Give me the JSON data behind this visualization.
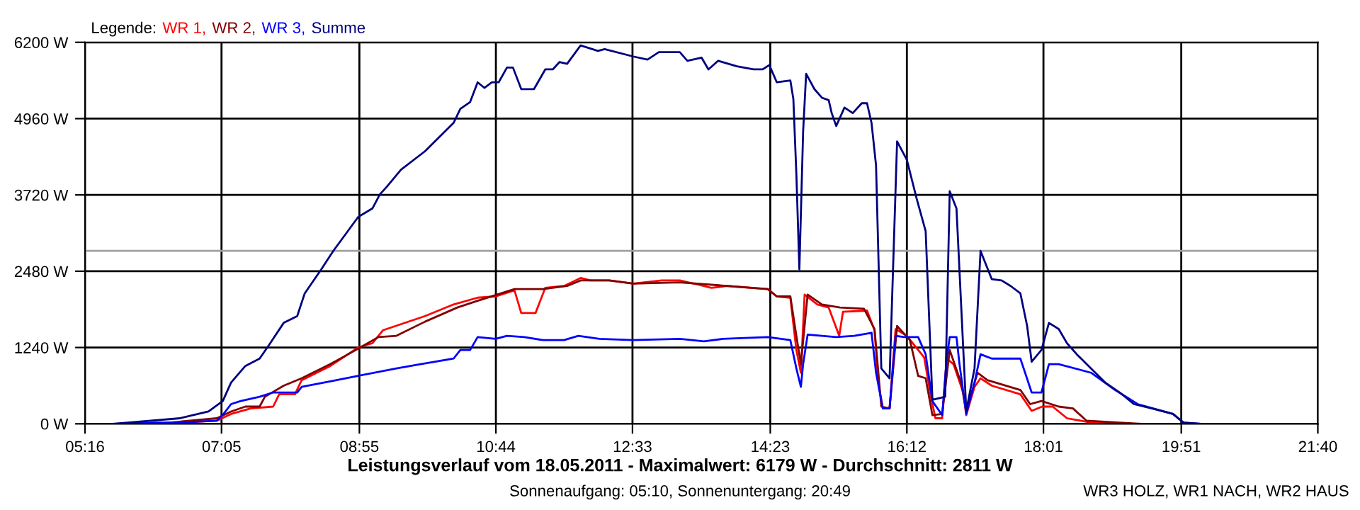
{
  "chart_data": {
    "type": "line",
    "title": "Leistungsverlauf vom 18.05.2011 - Maximalwert: 6179 W - Durchschnitt: 2811 W",
    "subtitle": "Sonnenaufgang: 05:10, Sonnenuntergang: 20:49",
    "legend_title": "Legende:",
    "annotations": [
      "WR3 HOLZ, WR1 NACH, WR2 HAUS"
    ],
    "xlim": [
      5.267,
      21.667
    ],
    "ylim": [
      0,
      6200
    ],
    "xticks": [
      {
        "value": 5.267,
        "label": "05:16"
      },
      {
        "value": 7.083,
        "label": "07:05"
      },
      {
        "value": 8.917,
        "label": "08:55"
      },
      {
        "value": 10.733,
        "label": "10:44"
      },
      {
        "value": 12.55,
        "label": "12:33"
      },
      {
        "value": 14.383,
        "label": "14:23"
      },
      {
        "value": 16.2,
        "label": "16:12"
      },
      {
        "value": 18.017,
        "label": "18:01"
      },
      {
        "value": 19.85,
        "label": "19:51"
      },
      {
        "value": 21.667,
        "label": "21:40"
      }
    ],
    "yticks": [
      {
        "value": 0,
        "label": "0 W"
      },
      {
        "value": 1240,
        "label": "1240 W"
      },
      {
        "value": 2480,
        "label": "2480 W"
      },
      {
        "value": 3720,
        "label": "3720 W"
      },
      {
        "value": 4960,
        "label": "4960 W"
      },
      {
        "value": 6200,
        "label": "6200 W"
      }
    ],
    "grid": true,
    "legend": "top left",
    "marker": "none",
    "line_style": "solid",
    "ref_lines": [
      {
        "axis": "y",
        "value": 2811,
        "color": "#a0a0a0"
      }
    ],
    "series": [
      {
        "name": "WR 1,",
        "color": "#ff0000",
        "x": [
          5.64,
          6.21,
          7.02,
          7.21,
          7.47,
          7.77,
          7.85,
          8.06,
          8.15,
          8.53,
          8.9,
          9.09,
          9.23,
          9.79,
          10.17,
          10.49,
          10.73,
          10.98,
          11.07,
          11.26,
          11.39,
          11.64,
          11.86,
          11.99,
          12.24,
          12.56,
          12.94,
          13.18,
          13.43,
          13.6,
          13.81,
          14.35,
          14.47,
          14.65,
          14.73,
          14.79,
          14.84,
          15.01,
          15.16,
          15.3,
          15.35,
          15.67,
          15.77,
          15.82,
          15.88,
          15.97,
          16.05,
          16.2,
          16.43,
          16.52,
          16.58,
          16.67,
          16.73,
          16.82,
          16.95,
          16.99,
          17.1,
          17.18,
          17.33,
          17.71,
          17.86,
          18.0,
          18.14,
          18.33,
          18.65,
          18.97
        ],
        "values": [
          0,
          0,
          50,
          160,
          250,
          280,
          480,
          480,
          710,
          940,
          1240,
          1310,
          1520,
          1750,
          1940,
          2050,
          2070,
          2170,
          1800,
          1800,
          2210,
          2240,
          2370,
          2330,
          2330,
          2280,
          2330,
          2330,
          2260,
          2210,
          2240,
          2190,
          2070,
          2050,
          1200,
          830,
          2100,
          1940,
          1890,
          1430,
          1820,
          1840,
          1520,
          670,
          250,
          250,
          1540,
          1430,
          1080,
          440,
          90,
          90,
          1060,
          970,
          510,
          140,
          600,
          740,
          620,
          480,
          210,
          280,
          280,
          90,
          20,
          0
        ]
      },
      {
        "name": "WR 2,",
        "color": "#800000",
        "x": [
          5.64,
          6.21,
          7.02,
          7.21,
          7.4,
          7.59,
          7.66,
          7.91,
          8.15,
          8.53,
          8.9,
          9.17,
          9.41,
          9.79,
          10.22,
          10.49,
          10.98,
          11.36,
          11.68,
          11.86,
          12.24,
          12.56,
          13.18,
          14.35,
          14.47,
          14.65,
          14.73,
          14.79,
          14.88,
          15.07,
          15.31,
          15.63,
          15.77,
          15.86,
          15.97,
          16.07,
          16.24,
          16.35,
          16.45,
          16.54,
          16.67,
          16.77,
          16.92,
          16.99,
          17.14,
          17.27,
          17.71,
          17.84,
          17.99,
          18.22,
          18.41,
          18.59,
          19.03,
          19.31
        ],
        "values": [
          0,
          0,
          90,
          200,
          280,
          280,
          440,
          620,
          740,
          970,
          1220,
          1410,
          1430,
          1660,
          1890,
          2000,
          2190,
          2190,
          2240,
          2330,
          2330,
          2280,
          2300,
          2190,
          2070,
          2070,
          1430,
          970,
          2100,
          1940,
          1890,
          1870,
          1540,
          280,
          250,
          1590,
          1360,
          780,
          740,
          140,
          160,
          1200,
          670,
          210,
          830,
          710,
          550,
          320,
          370,
          280,
          250,
          50,
          20,
          0
        ]
      },
      {
        "name": "WR 3,",
        "color": "#0000ff",
        "x": [
          5.64,
          6.21,
          6.53,
          7.02,
          7.11,
          7.21,
          7.34,
          7.59,
          7.77,
          8.09,
          8.15,
          8.53,
          8.9,
          9.41,
          9.73,
          10.17,
          10.26,
          10.39,
          10.49,
          10.73,
          10.88,
          11.11,
          11.36,
          11.64,
          11.83,
          12.11,
          12.56,
          13.18,
          13.5,
          13.75,
          14.35,
          14.65,
          14.73,
          14.79,
          14.82,
          14.88,
          15.26,
          15.5,
          15.73,
          15.79,
          15.88,
          15.97,
          16.05,
          16.16,
          16.35,
          16.45,
          16.54,
          16.67,
          16.73,
          16.77,
          16.86,
          16.9,
          16.99,
          17.1,
          17.18,
          17.33,
          17.71,
          17.86,
          17.99,
          18.09,
          18.22,
          18.65,
          18.97,
          19.27,
          19.74,
          19.88,
          20.1
        ],
        "values": [
          0,
          20,
          20,
          50,
          160,
          320,
          370,
          440,
          510,
          510,
          600,
          690,
          780,
          900,
          970,
          1060,
          1200,
          1200,
          1410,
          1380,
          1430,
          1410,
          1360,
          1360,
          1430,
          1380,
          1360,
          1380,
          1340,
          1380,
          1410,
          1360,
          900,
          600,
          970,
          1450,
          1410,
          1430,
          1480,
          830,
          250,
          250,
          1430,
          1410,
          1410,
          1130,
          370,
          140,
          1060,
          1410,
          1410,
          970,
          160,
          670,
          1130,
          1060,
          1060,
          510,
          510,
          970,
          970,
          830,
          550,
          320,
          160,
          20,
          0
        ]
      },
      {
        "name": "Summe",
        "color": "#000080",
        "x": [
          5.64,
          6.53,
          6.91,
          7.1,
          7.21,
          7.4,
          7.59,
          7.72,
          7.91,
          8.09,
          8.19,
          8.41,
          8.57,
          8.9,
          9.09,
          9.19,
          9.28,
          9.47,
          9.79,
          9.98,
          10.17,
          10.26,
          10.39,
          10.49,
          10.58,
          10.68,
          10.77,
          10.88,
          10.96,
          11.07,
          11.24,
          11.39,
          11.49,
          11.58,
          11.68,
          11.86,
          12.09,
          12.18,
          12.56,
          12.75,
          12.9,
          13.18,
          13.28,
          13.47,
          13.56,
          13.69,
          13.94,
          14.16,
          14.28,
          14.37,
          14.47,
          14.65,
          14.69,
          14.73,
          14.77,
          14.82,
          14.86,
          14.97,
          15.07,
          15.16,
          15.2,
          15.26,
          15.37,
          15.48,
          15.6,
          15.67,
          15.73,
          15.79,
          15.86,
          15.97,
          16.07,
          16.2,
          16.33,
          16.45,
          16.54,
          16.71,
          16.77,
          16.86,
          16.99,
          17.1,
          17.18,
          17.33,
          17.46,
          17.58,
          17.71,
          17.8,
          17.86,
          17.99,
          18.09,
          18.22,
          18.33,
          18.46,
          18.65,
          18.84,
          19.03,
          19.22,
          19.46,
          19.74,
          19.88,
          20.1
        ],
        "values": [
          0,
          90,
          200,
          370,
          670,
          940,
          1060,
          1290,
          1640,
          1750,
          2120,
          2510,
          2810,
          3360,
          3500,
          3730,
          3850,
          4130,
          4430,
          4660,
          4890,
          5120,
          5230,
          5550,
          5460,
          5550,
          5550,
          5790,
          5790,
          5440,
          5440,
          5760,
          5760,
          5880,
          5850,
          6150,
          6060,
          6090,
          5970,
          5920,
          6040,
          6040,
          5900,
          5950,
          5760,
          5900,
          5810,
          5760,
          5760,
          5830,
          5550,
          5580,
          5280,
          4060,
          2510,
          4750,
          5690,
          5440,
          5300,
          5260,
          5050,
          4840,
          5140,
          5050,
          5210,
          5210,
          4890,
          4200,
          900,
          740,
          4590,
          4290,
          3660,
          3130,
          390,
          440,
          3780,
          3500,
          210,
          900,
          2810,
          2350,
          2330,
          2240,
          2120,
          1590,
          1010,
          1200,
          1640,
          1540,
          1310,
          1130,
          900,
          670,
          510,
          320,
          250,
          160,
          20,
          0
        ]
      }
    ]
  }
}
